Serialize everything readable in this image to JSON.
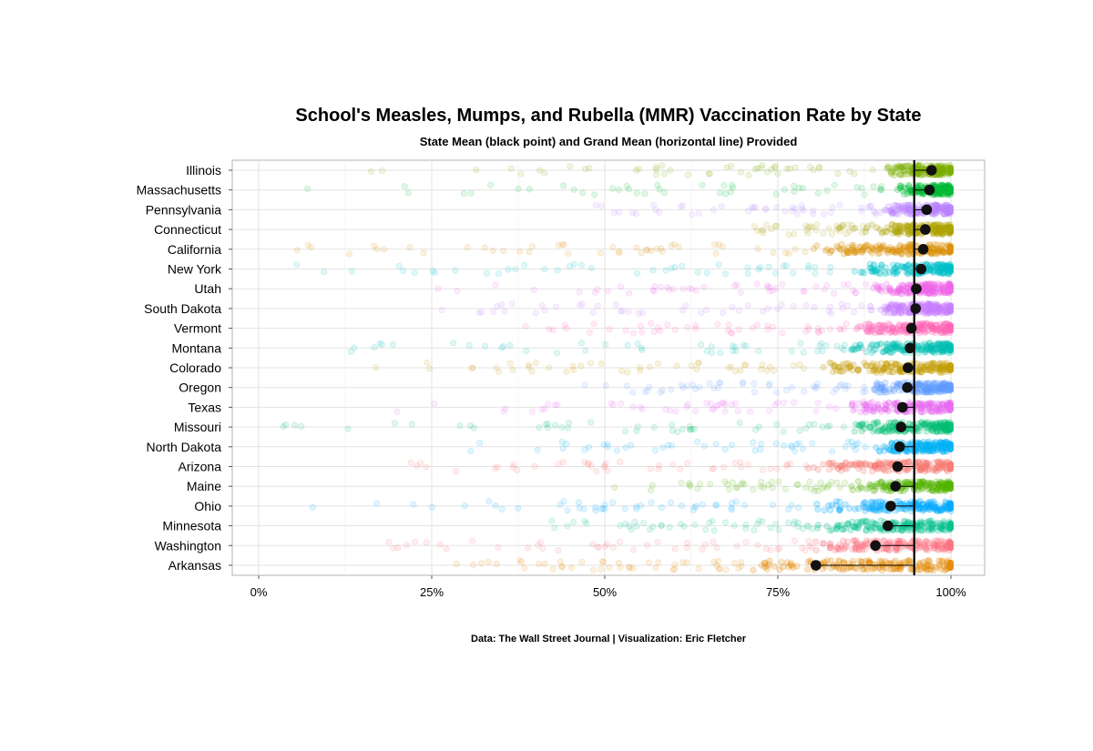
{
  "chart_data": {
    "type": "scatter",
    "title": "School's Measles, Mumps, and Rubella (MMR) Vaccination Rate by State",
    "subtitle": "State Mean (black point) and Grand Mean (horizontal line) Provided",
    "caption": "Data: The Wall Street Journal | Visualization: Eric Fletcher",
    "xlim": [
      0,
      100
    ],
    "x_ticks": [
      "0%",
      "25%",
      "50%",
      "75%",
      "100%"
    ],
    "x_tick_values": [
      0,
      25,
      50,
      75,
      100
    ],
    "grand_mean": 94.7,
    "grid": true,
    "states": [
      {
        "name": "Illinois",
        "mean": 97.2,
        "color": "#7CAE00",
        "min": 10,
        "dense_from": 90
      },
      {
        "name": "Massachusetts",
        "mean": 96.9,
        "color": "#00BA38",
        "min": 3,
        "dense_from": 92
      },
      {
        "name": "Pennsylvania",
        "mean": 96.5,
        "color": "#B983FF",
        "min": 45,
        "dense_from": 90
      },
      {
        "name": "Connecticut",
        "mean": 96.3,
        "color": "#AEA200",
        "min": 67,
        "dense_from": 88
      },
      {
        "name": "California",
        "mean": 96.0,
        "color": "#DB8E00",
        "min": 0,
        "dense_from": 80
      },
      {
        "name": "New York",
        "mean": 95.7,
        "color": "#00C1C8",
        "min": 3,
        "dense_from": 85
      },
      {
        "name": "Utah",
        "mean": 95.0,
        "color": "#F066EA",
        "min": 20,
        "dense_from": 88
      },
      {
        "name": "South Dakota",
        "mean": 94.9,
        "color": "#C77CFF",
        "min": 25,
        "dense_from": 88
      },
      {
        "name": "Vermont",
        "mean": 94.3,
        "color": "#FF63B6",
        "min": 33,
        "dense_from": 85
      },
      {
        "name": "Montana",
        "mean": 94.1,
        "color": "#00BFB2",
        "min": 9,
        "dense_from": 85
      },
      {
        "name": "Colorado",
        "mean": 93.8,
        "color": "#C49A00",
        "min": 16,
        "dense_from": 80
      },
      {
        "name": "Oregon",
        "mean": 93.7,
        "color": "#619CFF",
        "min": 45,
        "dense_from": 88
      },
      {
        "name": "Texas",
        "mean": 93.0,
        "color": "#E76BF3",
        "min": 16,
        "dense_from": 85
      },
      {
        "name": "Missouri",
        "mean": 92.8,
        "color": "#00BE70",
        "min": 0,
        "dense_from": 85
      },
      {
        "name": "North Dakota",
        "mean": 92.6,
        "color": "#00B0F6",
        "min": 27,
        "dense_from": 88
      },
      {
        "name": "Arizona",
        "mean": 92.3,
        "color": "#F8766D",
        "min": 15,
        "dense_from": 80
      },
      {
        "name": "Maine",
        "mean": 92.0,
        "color": "#53B400",
        "min": 46,
        "dense_from": 85
      },
      {
        "name": "Ohio",
        "mean": 91.3,
        "color": "#00A9FF",
        "min": 3,
        "dense_from": 80
      },
      {
        "name": "Minnesota",
        "mean": 90.9,
        "color": "#00C08B",
        "min": 37,
        "dense_from": 80
      },
      {
        "name": "Washington",
        "mean": 89.1,
        "color": "#FC717F",
        "min": 13,
        "dense_from": 80
      },
      {
        "name": "Arkansas",
        "mean": 80.5,
        "color": "#E38900",
        "min": 17,
        "dense_from": 70
      }
    ]
  }
}
